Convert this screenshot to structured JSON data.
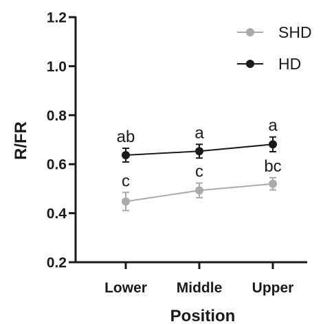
{
  "chart_data": {
    "type": "line",
    "title": "",
    "xlabel": "Position",
    "ylabel": "R/FR",
    "categories": [
      "Lower",
      "Middle",
      "Upper"
    ],
    "ylim": [
      0.2,
      1.2
    ],
    "yticks": [
      0.2,
      0.4,
      0.6,
      0.8,
      1.0,
      1.2
    ],
    "ytick_labels": [
      "0.2",
      "0.4",
      "0.6",
      "0.8",
      "1.0",
      "1.2"
    ],
    "grid": false,
    "legend_position": "top-right",
    "series": [
      {
        "name": "SHD",
        "color": "#aaaaaa",
        "values": [
          0.448,
          0.493,
          0.52
        ],
        "errors": [
          0.037,
          0.03,
          0.025
        ],
        "letters": [
          "c",
          "c",
          "bc"
        ]
      },
      {
        "name": "HD",
        "color": "#1a1a1a",
        "values": [
          0.637,
          0.653,
          0.681
        ],
        "errors": [
          0.028,
          0.028,
          0.03
        ],
        "letters": [
          "ab",
          "a",
          "a"
        ]
      }
    ]
  }
}
